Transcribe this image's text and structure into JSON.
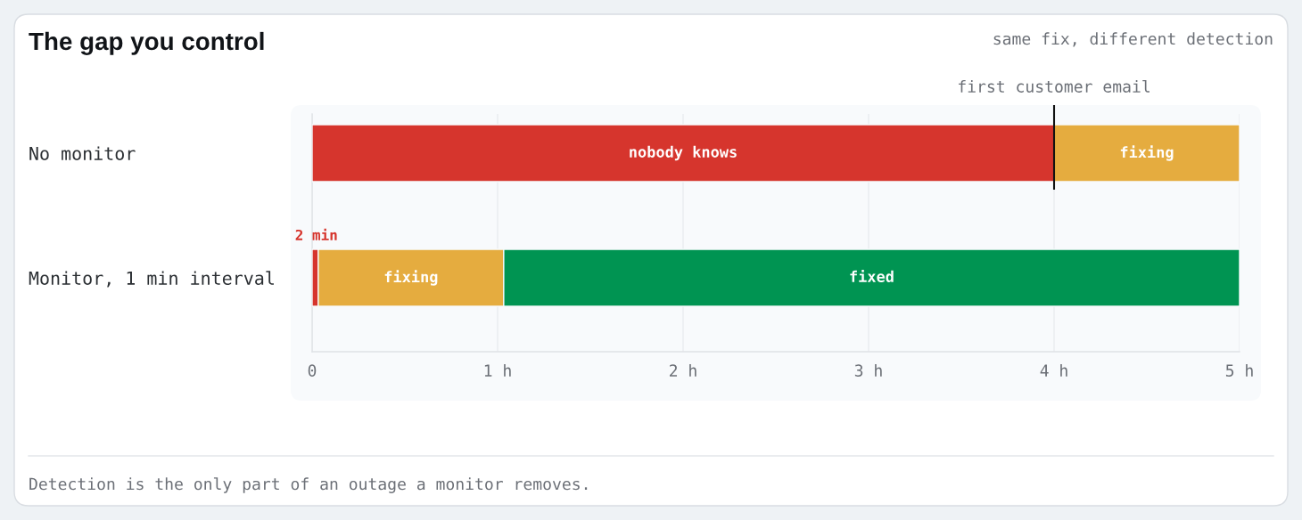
{
  "chart_data": {
    "type": "bar",
    "orientation": "horizontal",
    "stacked": true,
    "title": "The gap you control",
    "subtitle": "same fix, different detection",
    "categories": [
      "No monitor",
      "Monitor, 1 min interval"
    ],
    "series": [
      {
        "name": "nobody knows",
        "color": "#d6352d",
        "values": [
          4,
          0.033
        ]
      },
      {
        "name": "fixing",
        "color": "#e5ac3f",
        "values": [
          1,
          1
        ]
      },
      {
        "name": "fixed",
        "color": "#009452",
        "values": [
          null,
          3.967
        ]
      }
    ],
    "xlim": [
      0,
      5
    ],
    "xticks": [
      0,
      {
        "value": 1,
        "label": "1 h"
      },
      {
        "value": 2,
        "label": "2 h"
      },
      {
        "value": 3,
        "label": "3 h"
      },
      {
        "value": 4,
        "label": "4 h"
      },
      {
        "value": 5,
        "label": "5 h"
      }
    ],
    "grid": "x",
    "ref_lines": [
      {
        "axis": "x",
        "value": 4,
        "label": "first customer email",
        "color": "#111111"
      }
    ],
    "annotations": [
      {
        "text": "2 min",
        "x": 0.033,
        "y": "Monitor, 1 min interval"
      },
      "Detection is the only part of an outage a monitor removes."
    ]
  }
}
